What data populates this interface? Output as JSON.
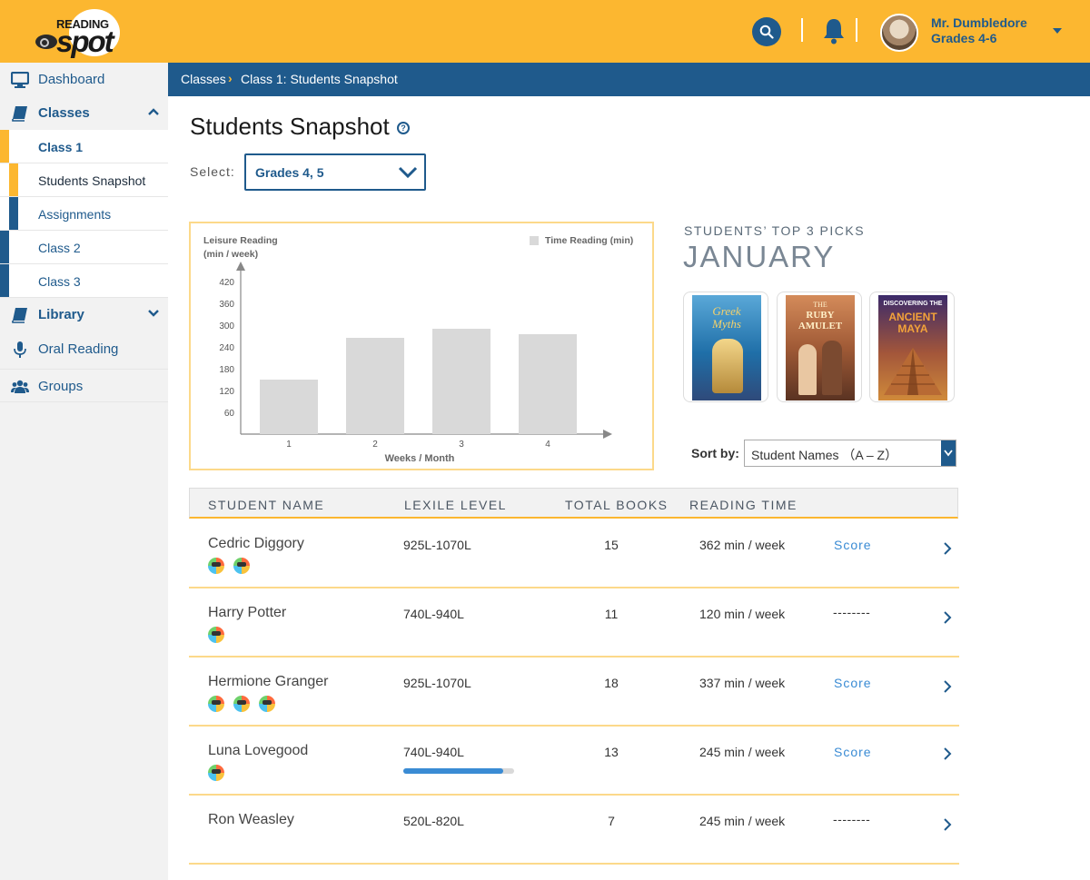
{
  "header": {
    "logo_top": "READING",
    "logo_bottom": "spot",
    "user_name": "Mr. Dumbledore",
    "user_grades": "Grades 4-6",
    "icons": [
      "search-icon",
      "bell-icon",
      "avatar",
      "caret-down-icon"
    ],
    "accent_color": "#fcb730",
    "brand_color": "#1f5a8c"
  },
  "sidebar": {
    "items": [
      {
        "label": "Dashboard",
        "icon": "monitor-icon"
      },
      {
        "label": "Classes",
        "icon": "book-icon"
      },
      {
        "label": "Class 1"
      },
      {
        "label": "Students Snapshot"
      },
      {
        "label": "Assignments"
      },
      {
        "label": "Class 2"
      },
      {
        "label": "Class 3"
      },
      {
        "label": "Library",
        "icon": "book-icon"
      },
      {
        "label": "Oral Reading",
        "icon": "microphone-icon"
      },
      {
        "label": "Groups",
        "icon": "users-icon"
      }
    ]
  },
  "breadcrumb": {
    "root": "Classes",
    "separator": "›",
    "current": "Class 1: Students Snapshot"
  },
  "page": {
    "title": "Students Snapshot",
    "help": "?",
    "select_label": "Select:",
    "grade_value": "Grades 4, 5"
  },
  "chart_data": {
    "type": "bar",
    "ylabel_line1": "Leisure Reading",
    "ylabel_line2": "(min / week)",
    "xlabel": "Weeks / Month",
    "legend": "Time Reading (min)",
    "legend_position": "top-right",
    "categories": [
      "1",
      "2",
      "3",
      "4"
    ],
    "values": [
      150,
      265,
      290,
      275
    ],
    "yticks": [
      60,
      120,
      180,
      240,
      300,
      360,
      420
    ],
    "ylim": [
      0,
      450
    ],
    "bar_color": "#d9d9d9",
    "grid": false
  },
  "picks": {
    "label": "STUDENTS’ TOP 3 PICKS",
    "month": "JANUARY",
    "books": [
      {
        "title_a": "Greek",
        "title_b": "Myths"
      },
      {
        "title_a": "THE",
        "title_b": "RUBY AMULET"
      },
      {
        "title_a": "DISCOVERING THE",
        "title_b": "ANCIENT MAYA"
      }
    ]
  },
  "sort": {
    "label": "Sort by:",
    "value": "Student Names （A – Z）"
  },
  "table": {
    "headers": [
      "STUDENT NAME",
      "LEXILE LEVEL",
      "TOTAL BOOKS",
      "READING TIME"
    ],
    "rows": [
      {
        "name": "Cedric Diggory",
        "lexile": "925L-1070L",
        "books": "15",
        "time": "362 min / week",
        "score": "Score",
        "badges": 2
      },
      {
        "name": "Harry Potter",
        "lexile": "740L-940L",
        "books": "11",
        "time": "120 min / week",
        "score": "--------",
        "badges": 1
      },
      {
        "name": "Hermione Granger",
        "lexile": "925L-1070L",
        "books": "18",
        "time": "337 min / week",
        "score": "Score",
        "badges": 3
      },
      {
        "name": "Luna Lovegood",
        "lexile": "740L-940L",
        "books": "13",
        "time": "245 min / week",
        "score": "Score",
        "badges": 1,
        "progress": 0.9
      },
      {
        "name": "Ron Weasley",
        "lexile": "520L-820L",
        "books": "7",
        "time": "245 min / week",
        "score": "--------",
        "badges": 0
      }
    ]
  }
}
